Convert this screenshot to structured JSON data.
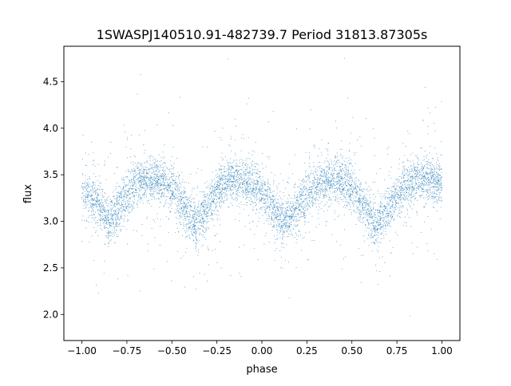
{
  "chart_data": {
    "type": "scatter",
    "title": "1SWASPJ140510.91-482739.7 Period 31813.87305s",
    "xlabel": "phase",
    "ylabel": "flux",
    "xlim": [
      -1.1,
      1.1
    ],
    "ylim": [
      1.72,
      4.88
    ],
    "x_ticks": [
      -1.0,
      -0.75,
      -0.5,
      -0.25,
      0.0,
      0.25,
      0.5,
      0.75,
      1.0
    ],
    "x_tick_labels": [
      "−1.00",
      "−0.75",
      "−0.50",
      "−0.25",
      "0.00",
      "0.25",
      "0.50",
      "0.75",
      "1.00"
    ],
    "y_ticks": [
      2.0,
      2.5,
      3.0,
      3.5,
      4.0,
      4.5
    ],
    "y_tick_labels": [
      "2.0",
      "2.5",
      "3.0",
      "3.5",
      "4.0",
      "4.5"
    ],
    "grid": false,
    "legend": "none",
    "marker_color": "#1f77b4",
    "phase_range": [
      -1.0,
      1.0
    ],
    "series": [
      {
        "trend": {
          "x": [
            -1.0,
            -0.9,
            -0.85,
            -0.78,
            -0.7,
            -0.62,
            -0.55,
            -0.48,
            -0.42,
            -0.36,
            -0.3,
            -0.24,
            -0.18,
            -0.12,
            -0.05,
            0.0,
            0.06,
            0.12,
            0.2,
            0.28,
            0.36,
            0.43,
            0.5,
            0.55,
            0.6,
            0.64,
            0.7,
            0.78,
            0.85,
            0.92,
            1.0
          ],
          "y": [
            3.35,
            3.15,
            3.0,
            3.2,
            3.4,
            3.45,
            3.45,
            3.3,
            3.1,
            2.95,
            3.15,
            3.35,
            3.45,
            3.45,
            3.4,
            3.3,
            3.15,
            3.0,
            3.15,
            3.35,
            3.45,
            3.45,
            3.35,
            3.2,
            3.05,
            2.95,
            3.15,
            3.35,
            3.45,
            3.45,
            3.4
          ]
        }
      }
    ]
  }
}
